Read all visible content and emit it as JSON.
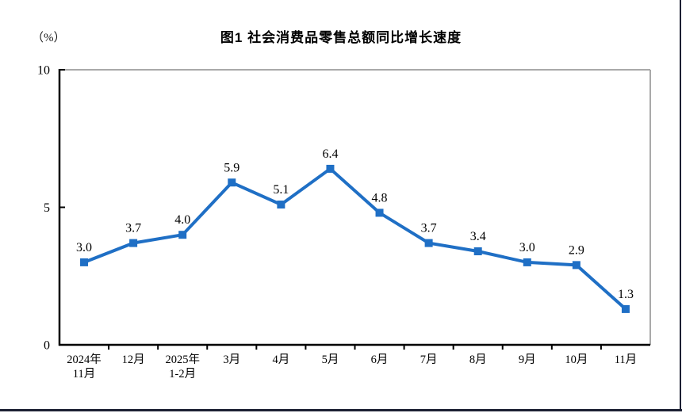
{
  "page": {
    "border_color": "#1c2033"
  },
  "chart_data": {
    "type": "line",
    "title": "图1 社会消费品零售总额同比增长速度",
    "unit_label": "（%）",
    "categories": [
      [
        "2024年",
        "11月"
      ],
      [
        "12月"
      ],
      [
        "2025年",
        "1-2月"
      ],
      [
        "3月"
      ],
      [
        "4月"
      ],
      [
        "5月"
      ],
      [
        "6月"
      ],
      [
        "7月"
      ],
      [
        "8月"
      ],
      [
        "9月"
      ],
      [
        "10月"
      ],
      [
        "11月"
      ]
    ],
    "values": [
      3.0,
      3.7,
      4.0,
      5.9,
      5.1,
      6.4,
      4.8,
      3.7,
      3.4,
      3.0,
      2.9,
      1.3
    ],
    "value_labels": [
      "3.0",
      "3.7",
      "4.0",
      "5.9",
      "5.1",
      "6.4",
      "4.8",
      "3.7",
      "3.4",
      "3.0",
      "2.9",
      "1.3"
    ],
    "xlabel": "",
    "ylabel": "（%）",
    "ylim": [
      0,
      10
    ],
    "yticks": [
      0,
      5,
      10
    ],
    "ytick_labels": [
      "0",
      "5",
      "10"
    ],
    "grid": false,
    "legend": "none",
    "line_color": "#1f6fc5",
    "marker": "square",
    "label_color": "#000000",
    "axis_color": "#000000",
    "plot_border_color": "#a9a9a9"
  }
}
